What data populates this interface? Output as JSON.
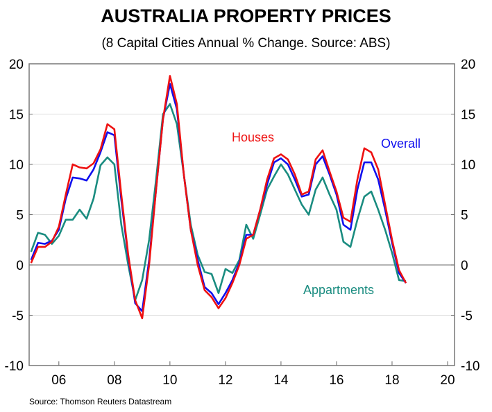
{
  "chart_data": {
    "type": "line",
    "title": "AUSTRALIA PROPERTY PRICES",
    "subtitle": "(8 Capital Cities Annual % Change. Source: ABS)",
    "source": "Source: Thomson Reuters Datastream",
    "xlabel": "",
    "ylabel": "",
    "xlim": [
      2004.93,
      2020.25
    ],
    "ylim": [
      -10,
      20
    ],
    "x_ticks": [
      2006,
      2008,
      2010,
      2012,
      2014,
      2016,
      2018,
      2020
    ],
    "x_tick_labels": [
      "06",
      "08",
      "10",
      "12",
      "14",
      "16",
      "18",
      "20"
    ],
    "y_ticks": [
      -10,
      -5,
      0,
      5,
      10,
      15,
      20
    ],
    "y_tick_labels": [
      "-10",
      "-5",
      "0",
      "5",
      "10",
      "15",
      "20"
    ],
    "grid": true,
    "dual_y_axis": true,
    "x": [
      2005.0,
      2005.25,
      2005.5,
      2005.75,
      2006.0,
      2006.25,
      2006.5,
      2006.75,
      2007.0,
      2007.25,
      2007.5,
      2007.75,
      2008.0,
      2008.25,
      2008.5,
      2008.75,
      2009.0,
      2009.25,
      2009.5,
      2009.75,
      2010.0,
      2010.25,
      2010.5,
      2010.75,
      2011.0,
      2011.25,
      2011.5,
      2011.75,
      2012.0,
      2012.25,
      2012.5,
      2012.75,
      2013.0,
      2013.25,
      2013.5,
      2013.75,
      2014.0,
      2014.25,
      2014.5,
      2014.75,
      2015.0,
      2015.25,
      2015.5,
      2015.75,
      2016.0,
      2016.25,
      2016.5,
      2016.75,
      2017.0,
      2017.25,
      2017.5,
      2017.75,
      2018.0,
      2018.25,
      2018.5
    ],
    "series": [
      {
        "name": "Appartments",
        "color": "#1a8c80",
        "values": [
          1.3,
          3.2,
          3.0,
          2.1,
          2.9,
          4.5,
          4.5,
          5.5,
          4.6,
          6.6,
          9.9,
          10.7,
          10.0,
          4.0,
          0.0,
          -3.5,
          -1.5,
          2.5,
          8.5,
          15.0,
          16.0,
          14.0,
          9.0,
          4.0,
          1.0,
          -0.7,
          -0.9,
          -2.8,
          -0.4,
          -0.8,
          0.5,
          4.0,
          2.6,
          5.0,
          7.5,
          8.8,
          10.0,
          9.0,
          7.5,
          6.0,
          5.0,
          7.5,
          8.7,
          7.0,
          5.5,
          2.3,
          1.8,
          4.5,
          6.8,
          7.3,
          5.5,
          3.5,
          1.2,
          -1.5,
          -1.6
        ]
      },
      {
        "name": "Overall",
        "color": "#1010ee",
        "values": [
          0.5,
          2.2,
          2.1,
          2.4,
          3.5,
          6.6,
          8.7,
          8.6,
          8.4,
          9.5,
          11.2,
          13.2,
          12.9,
          6.5,
          0.8,
          -3.8,
          -4.6,
          0.5,
          7.5,
          14.5,
          18.0,
          15.5,
          9.0,
          3.5,
          0.5,
          -2.2,
          -2.8,
          -3.9,
          -2.8,
          -1.5,
          0.2,
          3.0,
          3.0,
          5.5,
          8.0,
          10.2,
          10.6,
          10.0,
          8.5,
          6.8,
          7.0,
          10.0,
          10.8,
          9.0,
          7.0,
          4.0,
          3.5,
          7.5,
          10.2,
          10.2,
          8.5,
          5.5,
          2.2,
          -0.8,
          -1.8
        ]
      },
      {
        "name": "Houses",
        "color": "#ee1111",
        "values": [
          0.2,
          1.8,
          1.8,
          2.3,
          3.8,
          7.0,
          10.0,
          9.7,
          9.6,
          10.1,
          11.5,
          14.0,
          13.5,
          7.0,
          1.0,
          -3.5,
          -5.3,
          0.0,
          7.5,
          14.5,
          18.8,
          16.0,
          9.0,
          3.5,
          0.0,
          -2.5,
          -3.2,
          -4.3,
          -3.3,
          -1.8,
          0.0,
          2.6,
          3.0,
          5.5,
          8.5,
          10.6,
          11.0,
          10.5,
          9.0,
          7.0,
          7.3,
          10.5,
          11.4,
          9.3,
          7.3,
          4.7,
          4.3,
          8.5,
          11.6,
          11.2,
          9.5,
          6.0,
          2.5,
          -0.5,
          -1.8
        ]
      }
    ]
  }
}
